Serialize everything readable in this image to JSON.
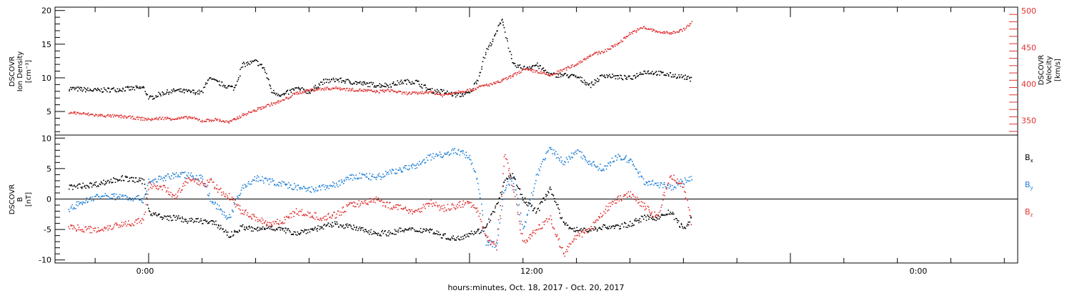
{
  "chart_data": [
    {
      "type": "scatter",
      "panel": "plasma",
      "ylabel_left": [
        "DSCOVR",
        "Ion Density",
        "[cm⁻³]"
      ],
      "ylabel_right": [
        "DSCOVR",
        "Velocity",
        "[km/s]"
      ],
      "ylim_left": [
        1.5,
        20.5
      ],
      "ylim_right": [
        330,
        505
      ],
      "left_ticks": [
        "5",
        "10",
        "15",
        "20"
      ],
      "right_ticks": [
        "350",
        "400",
        "450",
        "500"
      ],
      "series": [
        {
          "axis": "left",
          "color": "#000000",
          "x": [
            -3.0,
            -2.0,
            -1.0,
            -0.2,
            0.0,
            0.5,
            1.0,
            1.5,
            2.0,
            2.2,
            2.8,
            3.2,
            3.5,
            4.0,
            4.3,
            4.6,
            5.0,
            5.5,
            6.0,
            6.5,
            7.0,
            7.5,
            8.0,
            8.5,
            9.0,
            9.5,
            10.0,
            10.5,
            11.0,
            11.5,
            12.0,
            12.3,
            12.6,
            12.9,
            13.2,
            13.6,
            14.0,
            14.5,
            15.0,
            15.5,
            16.0,
            16.5,
            17.0,
            17.5,
            18.0,
            18.5,
            19.0,
            19.5,
            20.0,
            20.3
          ],
          "y": [
            8.5,
            8.2,
            8.4,
            8.6,
            7.0,
            7.8,
            8.2,
            8.0,
            7.9,
            10.0,
            9.0,
            8.5,
            12.0,
            12.5,
            11.5,
            8.0,
            7.5,
            8.5,
            8.0,
            9.5,
            9.8,
            9.5,
            9.2,
            9.0,
            9.0,
            9.5,
            9.5,
            8.2,
            8.0,
            7.5,
            7.8,
            10.0,
            14.0,
            16.0,
            19.0,
            12.0,
            11.5,
            12.0,
            10.5,
            10.5,
            10.2,
            9.0,
            10.5,
            10.2,
            10.0,
            11.0,
            10.8,
            10.5,
            10.2,
            9.8
          ]
        },
        {
          "axis": "right",
          "color": "#e03030",
          "x": [
            -3.0,
            -2.0,
            -1.0,
            -0.5,
            0.0,
            0.5,
            1.0,
            1.5,
            2.0,
            2.5,
            3.0,
            3.5,
            4.0,
            4.5,
            5.0,
            5.5,
            6.0,
            6.5,
            7.0,
            7.5,
            8.0,
            8.5,
            9.0,
            9.5,
            10.0,
            10.5,
            11.0,
            11.5,
            12.0,
            12.5,
            13.0,
            13.5,
            14.0,
            14.5,
            15.0,
            15.5,
            16.0,
            16.5,
            17.0,
            17.5,
            18.0,
            18.5,
            19.0,
            19.5,
            20.0,
            20.3
          ],
          "y": [
            362,
            358,
            356,
            354,
            352,
            354,
            353,
            355,
            350,
            352,
            348,
            358,
            365,
            372,
            378,
            388,
            392,
            394,
            395,
            393,
            392,
            390,
            392,
            388,
            388,
            390,
            385,
            390,
            392,
            398,
            402,
            410,
            420,
            418,
            412,
            420,
            428,
            440,
            445,
            455,
            470,
            478,
            472,
            470,
            475,
            485
          ]
        }
      ]
    },
    {
      "type": "scatter",
      "panel": "magnetic-field",
      "ylabel_left": [
        "DSCOVR",
        "B",
        "[nT]"
      ],
      "ylim": [
        -10.5,
        10.5
      ],
      "left_ticks": [
        "-10",
        "-5",
        "0",
        "5",
        "10"
      ],
      "zero_line": true,
      "legend": [
        "Bx",
        "By",
        "Bz"
      ],
      "legend_placement": "right",
      "series": [
        {
          "name": "Bx",
          "color": "#000000",
          "x": [
            -3.0,
            -2.0,
            -1.0,
            -0.2,
            0.0,
            0.5,
            1.0,
            1.5,
            2.0,
            2.5,
            2.8,
            3.0,
            3.5,
            4.0,
            4.5,
            5.0,
            5.5,
            6.0,
            6.5,
            7.0,
            7.5,
            8.0,
            8.5,
            9.0,
            9.5,
            10.0,
            10.5,
            11.0,
            11.5,
            12.0,
            12.5,
            13.0,
            13.3,
            13.6,
            14.0,
            14.5,
            15.0,
            15.5,
            16.0,
            16.5,
            17.0,
            17.5,
            18.0,
            18.5,
            19.0,
            19.5,
            20.0,
            20.3
          ],
          "y": [
            2.0,
            2.5,
            3.5,
            3.0,
            -2.0,
            -3.0,
            -3.0,
            -3.5,
            -3.5,
            -4.0,
            -5.0,
            -6.0,
            -4.5,
            -5.0,
            -4.5,
            -5.0,
            -5.5,
            -5.0,
            -4.5,
            -4.0,
            -4.5,
            -5.0,
            -5.5,
            -5.5,
            -5.0,
            -5.0,
            -5.0,
            -6.0,
            -6.5,
            -5.5,
            -5.0,
            -1.0,
            3.0,
            4.0,
            0.0,
            -2.0,
            2.0,
            -4.0,
            -5.0,
            -5.0,
            -4.5,
            -4.5,
            -4.0,
            -3.0,
            -3.0,
            -2.0,
            -5.0,
            -3.0
          ]
        },
        {
          "name": "By",
          "color": "#1f7fd6",
          "x": [
            -3.0,
            -2.0,
            -1.0,
            -0.2,
            0.0,
            0.5,
            1.0,
            1.5,
            2.0,
            2.3,
            2.7,
            3.0,
            3.5,
            4.0,
            4.5,
            5.0,
            5.5,
            6.0,
            6.5,
            7.0,
            7.5,
            8.0,
            8.5,
            9.0,
            9.5,
            10.0,
            10.5,
            11.0,
            11.5,
            12.0,
            12.3,
            12.6,
            13.0,
            13.3,
            13.6,
            14.0,
            14.5,
            15.0,
            15.5,
            16.0,
            16.5,
            17.0,
            17.5,
            18.0,
            18.5,
            19.0,
            19.5,
            20.0,
            20.3
          ],
          "y": [
            -1.5,
            0.5,
            0.5,
            0.0,
            3.0,
            3.5,
            4.0,
            4.0,
            3.5,
            0.0,
            -2.0,
            -3.0,
            2.0,
            3.5,
            3.0,
            2.5,
            2.0,
            1.5,
            2.0,
            2.5,
            3.5,
            4.0,
            3.5,
            4.5,
            5.0,
            5.5,
            7.0,
            7.5,
            8.0,
            7.0,
            3.0,
            -7.0,
            -7.5,
            2.0,
            3.5,
            -5.0,
            4.0,
            8.5,
            6.0,
            8.0,
            6.0,
            5.0,
            7.0,
            6.5,
            3.0,
            2.5,
            2.0,
            3.0,
            3.5
          ]
        },
        {
          "name": "Bz",
          "color": "#e03030",
          "x": [
            -3.0,
            -2.0,
            -1.0,
            -0.2,
            0.0,
            0.5,
            1.0,
            1.5,
            2.0,
            2.3,
            2.6,
            3.0,
            3.5,
            4.0,
            4.5,
            5.0,
            5.5,
            6.0,
            6.5,
            7.0,
            7.5,
            8.0,
            8.5,
            9.0,
            9.5,
            10.0,
            10.5,
            11.0,
            11.5,
            12.0,
            12.3,
            12.6,
            13.0,
            13.3,
            13.6,
            14.0,
            14.5,
            15.0,
            15.5,
            16.0,
            16.5,
            17.0,
            17.5,
            18.0,
            18.5,
            19.0,
            19.5,
            20.0,
            20.3
          ],
          "y": [
            -4.5,
            -5.0,
            -4.0,
            -3.5,
            2.5,
            2.0,
            0.5,
            3.5,
            2.5,
            3.0,
            1.5,
            0.5,
            -2.0,
            -3.0,
            -4.0,
            -3.5,
            -2.0,
            -2.5,
            -3.0,
            -2.5,
            -1.0,
            -0.5,
            0.0,
            -1.0,
            -1.5,
            -2.0,
            -0.5,
            -1.5,
            -1.0,
            -0.5,
            -2.0,
            -6.0,
            -8.0,
            8.0,
            2.0,
            -7.0,
            -5.0,
            -3.0,
            -9.0,
            -6.0,
            -5.0,
            -2.0,
            0.0,
            1.0,
            -1.0,
            -3.0,
            4.0,
            2.0,
            -4.0
          ]
        }
      ]
    }
  ],
  "x_axis": {
    "ticks": [
      "0:00",
      "12:00",
      "0:00"
    ],
    "label": "hours:minutes, Oct. 18, 2017 - Oct. 20, 2017",
    "xlim_hours": [
      -3.5,
      32.5
    ]
  },
  "legend": {
    "bx": {
      "main": "B",
      "sub": "x"
    },
    "by": {
      "main": "B",
      "sub": "y"
    },
    "bz": {
      "main": "B",
      "sub": "z"
    }
  }
}
